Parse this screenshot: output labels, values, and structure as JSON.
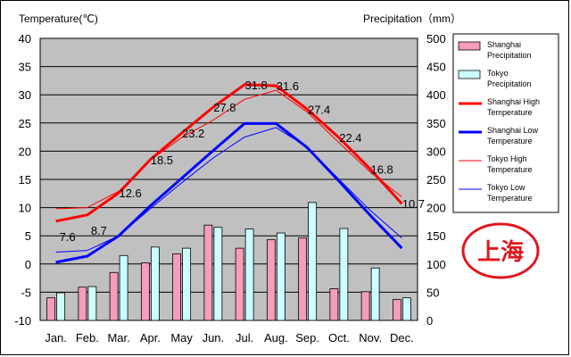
{
  "chart_data": {
    "type": "bar+line",
    "categories": [
      "Jan.",
      "Feb.",
      "Mar.",
      "Apr.",
      "May",
      "Jun.",
      "Jul.",
      "Aug.",
      "Sep.",
      "Oct.",
      "Nov.",
      "Dec."
    ],
    "left_axis": {
      "label": "Temperature(℃)",
      "ylim": [
        -10,
        40
      ],
      "ticks": [
        40,
        35,
        30,
        25,
        20,
        15,
        10,
        5,
        0,
        -5,
        -10
      ]
    },
    "right_axis": {
      "label": "Precipitation（mm）",
      "ylim": [
        0,
        500
      ],
      "ticks": [
        500,
        450,
        400,
        350,
        300,
        250,
        200,
        150,
        100,
        50,
        0
      ]
    },
    "bar_series": [
      {
        "name": "Shanghai Precipitation",
        "color": "#f59dba",
        "values": [
          40,
          59,
          85,
          102,
          118,
          169,
          128,
          143,
          146,
          56,
          51,
          37
        ]
      },
      {
        "name": "Tokyo Precipitation",
        "color": "#ccffff",
        "values": [
          49,
          60,
          115,
          130,
          128,
          165,
          162,
          155,
          209,
          163,
          93,
          40
        ]
      }
    ],
    "line_series": [
      {
        "name": "Shanghai High Temperature",
        "color": "#ff0000",
        "width": 3,
        "values": [
          7.6,
          8.7,
          12.6,
          18.5,
          23.2,
          27.8,
          31.8,
          31.6,
          27.4,
          22.4,
          16.8,
          10.7
        ],
        "labels": [
          "7.6",
          "8.7",
          "12.6",
          "18.5",
          "23.2",
          "27.8",
          "31.8",
          "31.6",
          "27.4",
          "22.4",
          "16.8",
          "10.7"
        ]
      },
      {
        "name": "Shanghai Low Temperature",
        "color": "#0000ff",
        "width": 3,
        "values": [
          0.3,
          1.4,
          5.0,
          10.3,
          15.2,
          20.1,
          24.9,
          24.9,
          20.6,
          14.7,
          8.6,
          2.8
        ]
      },
      {
        "name": "Tokyo High Temperature",
        "color": "#ff0000",
        "width": 1,
        "values": [
          9.8,
          10.0,
          12.9,
          18.4,
          22.4,
          25.5,
          29.2,
          30.8,
          26.9,
          21.5,
          16.3,
          11.9
        ]
      },
      {
        "name": "Tokyo Low Temperature",
        "color": "#0000ff",
        "width": 1,
        "values": [
          2.1,
          2.4,
          5.0,
          9.8,
          14.4,
          18.8,
          22.5,
          24.2,
          20.7,
          15.0,
          9.5,
          4.6
        ]
      }
    ],
    "legend_labels": [
      [
        "Shanghai",
        "Precipitation"
      ],
      [
        "Tokyo",
        "Precipitation"
      ],
      [
        "Shanghai High",
        "Temperature"
      ],
      [
        "Shanghai Low",
        "Temperature"
      ],
      [
        "Tokyo High",
        "Temperature"
      ],
      [
        "Tokyo Low",
        "Temperature"
      ]
    ],
    "legend_position": "right",
    "grid": true,
    "plot_background": "#c0c0c0",
    "seal_text": "上海"
  }
}
